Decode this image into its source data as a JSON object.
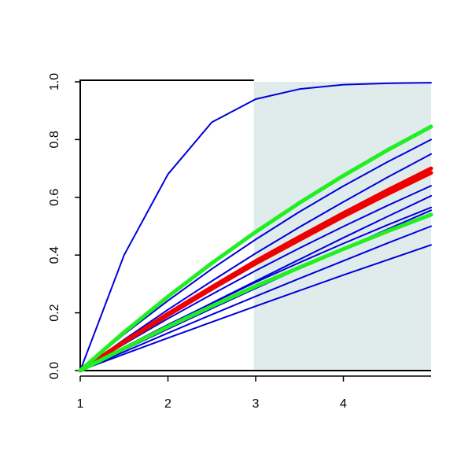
{
  "chart_data": {
    "type": "line",
    "x": [
      1,
      1.5,
      2,
      2.5,
      3,
      3.5,
      4,
      4.5,
      5
    ],
    "xlim": [
      1,
      5
    ],
    "ylim": [
      0,
      1
    ],
    "xticks": [
      1,
      2,
      3,
      4
    ],
    "yticks": [
      {
        "value": 0,
        "label": "0.0"
      },
      {
        "value": 0.2,
        "label": "0.2"
      },
      {
        "value": 0.4,
        "label": "0.4"
      },
      {
        "value": 0.6,
        "label": "0.6"
      },
      {
        "value": 0.8,
        "label": "0.8"
      },
      {
        "value": 1,
        "label": "1.0"
      }
    ],
    "shaded_region": {
      "x": [
        2.98,
        5
      ],
      "color": "#e0ecec"
    },
    "series": [
      {
        "color": "#0000dd",
        "line_width": 2,
        "values": [
          0,
          0.4,
          0.68,
          0.86,
          0.94,
          0.975,
          0.99,
          0.995,
          0.997
        ]
      },
      {
        "color": "#0000dd",
        "line_width": 2,
        "values": [
          0,
          0.126,
          0.242,
          0.352,
          0.454,
          0.55,
          0.639,
          0.722,
          0.8
        ]
      },
      {
        "color": "#0000dd",
        "line_width": 2,
        "values": [
          0,
          0.107,
          0.211,
          0.31,
          0.406,
          0.497,
          0.584,
          0.669,
          0.75
        ]
      },
      {
        "color": "#0000dd",
        "line_width": 2,
        "values": [
          0,
          0.092,
          0.18,
          0.264,
          0.346,
          0.424,
          0.499,
          0.571,
          0.64
        ]
      },
      {
        "color": "#0000dd",
        "line_width": 2,
        "values": [
          0,
          0.079,
          0.157,
          0.234,
          0.31,
          0.385,
          0.46,
          0.533,
          0.605
        ]
      },
      {
        "color": "#0000dd",
        "line_width": 2,
        "values": [
          0,
          0.081,
          0.159,
          0.233,
          0.306,
          0.374,
          0.44,
          0.504,
          0.565
        ]
      },
      {
        "color": "#0000dd",
        "line_width": 2,
        "values": [
          0,
          0.072,
          0.144,
          0.215,
          0.285,
          0.354,
          0.422,
          0.489,
          0.555
        ]
      },
      {
        "color": "#0000dd",
        "line_width": 2,
        "values": [
          0,
          0.065,
          0.13,
          0.194,
          0.257,
          0.319,
          0.38,
          0.441,
          0.5
        ]
      },
      {
        "color": "#0000dd",
        "line_width": 2,
        "values": [
          0,
          0.057,
          0.113,
          0.168,
          0.223,
          0.277,
          0.331,
          0.383,
          0.435
        ]
      },
      {
        "color": "#ee0000",
        "line_width": 5,
        "values": [
          0,
          0.1,
          0.197,
          0.289,
          0.379,
          0.463,
          0.545,
          0.624,
          0.7
        ]
      },
      {
        "color": "#ee0000",
        "line_width": 5,
        "values": [
          0,
          0.098,
          0.192,
          0.283,
          0.371,
          0.453,
          0.534,
          0.611,
          0.685
        ]
      },
      {
        "color": "#22ee22",
        "line_width": 5,
        "values": [
          0,
          0.133,
          0.256,
          0.372,
          0.48,
          0.581,
          0.675,
          0.763,
          0.845
        ]
      },
      {
        "color": "#22ee22",
        "line_width": 5,
        "values": [
          0,
          0.077,
          0.152,
          0.223,
          0.292,
          0.357,
          0.421,
          0.482,
          0.54
        ]
      }
    ]
  }
}
